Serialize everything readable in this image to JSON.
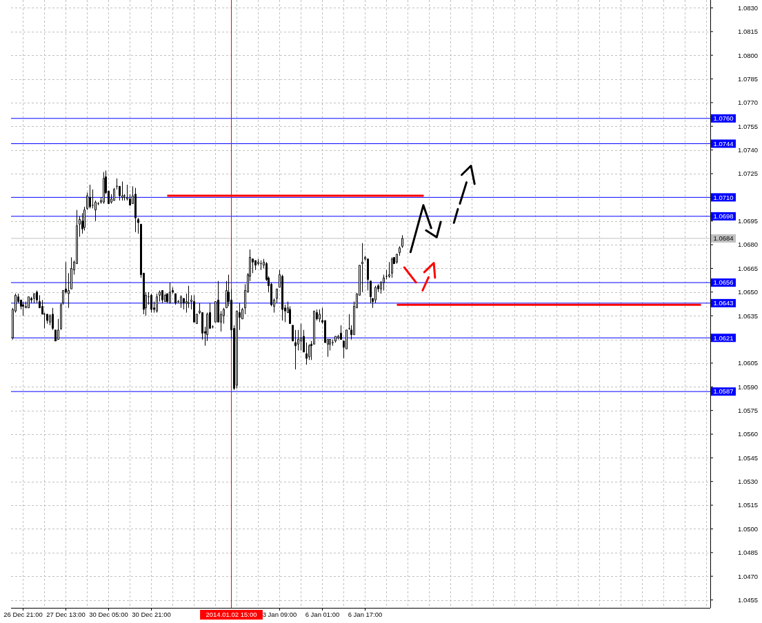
{
  "chart_data": {
    "type": "candlestick",
    "color": "#000000",
    "categories": [
      null,
      null,
      null,
      null,
      "26 Dec 21:00",
      null,
      null,
      null,
      null,
      null,
      null,
      null,
      null,
      null,
      null,
      null,
      null,
      null,
      null,
      null,
      "27 Dec 13:00",
      null,
      null,
      null,
      null,
      null,
      null,
      null,
      null,
      null,
      null,
      null,
      null,
      null,
      null,
      null,
      "30 Dec 05:00",
      null,
      null,
      null,
      null,
      null,
      null,
      null,
      null,
      null,
      null,
      null,
      null,
      null,
      null,
      null,
      "30 Dec 21:00",
      null,
      null,
      null,
      null,
      null,
      null,
      null,
      null,
      null,
      null,
      null,
      null,
      null,
      null,
      null,
      null,
      null,
      null,
      null,
      null,
      null,
      null,
      null,
      null,
      null,
      null,
      null,
      null,
      null,
      "2014.01.02 15:00",
      null,
      null,
      null,
      null,
      null,
      null,
      null,
      null,
      null,
      null,
      null,
      null,
      null,
      null,
      null,
      null,
      null,
      "3 Jan 09:00",
      null,
      null,
      null,
      null,
      null,
      null,
      null,
      null,
      null,
      null,
      null,
      null,
      null,
      null,
      null,
      "6 Jan 01:00",
      null,
      null,
      null,
      null,
      null,
      null,
      null,
      null,
      null,
      null,
      null,
      null,
      null,
      null,
      null,
      "6 Jan 17:00",
      null,
      null,
      null,
      null,
      null,
      null,
      null,
      null,
      null,
      null,
      null,
      null,
      null,
      null,
      null,
      null,
      null,
      null,
      null,
      null,
      null,
      null,
      null,
      null,
      null,
      null,
      null,
      null,
      null,
      null,
      null,
      null,
      null,
      null,
      null,
      null,
      null,
      null,
      null,
      null,
      null,
      null,
      null,
      null,
      null,
      null,
      null,
      null,
      null,
      null,
      null,
      null,
      null,
      null,
      null,
      null,
      null,
      null,
      null,
      null,
      null,
      null,
      null,
      null,
      null,
      null,
      null,
      null,
      null,
      null,
      null,
      null,
      null,
      null,
      null,
      null,
      null,
      null,
      null,
      null,
      null,
      null,
      null,
      null,
      null,
      null,
      null,
      null,
      null,
      null,
      null,
      null,
      null,
      null,
      null,
      null,
      null,
      null,
      null,
      null,
      null,
      null,
      null,
      null,
      null,
      null,
      null,
      null,
      null,
      null,
      null,
      null,
      null,
      null,
      null,
      null,
      null,
      null,
      null,
      null,
      null,
      null,
      null,
      null,
      null,
      null,
      null,
      null,
      null
    ],
    "ohlc": [
      [
        1.0621,
        1.064,
        1.062,
        1.0639
      ],
      [
        1.0638,
        1.0649,
        1.0637,
        1.0648
      ],
      [
        1.0647,
        1.0649,
        1.0643,
        1.0644
      ],
      [
        1.0645,
        1.0645,
        1.0639,
        1.0641
      ],
      [
        1.0642,
        1.0644,
        1.0635,
        1.0641
      ],
      [
        1.064,
        1.0644,
        1.064,
        1.0641
      ],
      [
        1.064,
        1.0647,
        1.064,
        1.0647
      ],
      [
        1.0646,
        1.0647,
        1.0643,
        1.0645
      ],
      [
        1.0646,
        1.0649,
        1.0643,
        1.0649
      ],
      [
        1.065,
        1.0651,
        1.0643,
        1.0645
      ],
      [
        1.0644,
        1.0648,
        1.064,
        1.064
      ],
      [
        1.0641,
        1.0645,
        1.0636,
        1.0636
      ],
      [
        1.0636,
        1.0637,
        1.0627,
        1.0636
      ],
      [
        1.0636,
        1.0636,
        1.063,
        1.0632
      ],
      [
        1.0631,
        1.0636,
        1.0629,
        1.0635
      ],
      [
        1.0636,
        1.064,
        1.0626,
        1.0627
      ],
      [
        1.0626,
        1.0626,
        1.0619,
        1.0619
      ],
      [
        1.062,
        1.0633,
        1.062,
        1.0626
      ],
      [
        1.0627,
        1.0643,
        1.0626,
        1.0642
      ],
      [
        1.0643,
        1.0651,
        1.0642,
        1.0651
      ],
      [
        1.0652,
        1.0669,
        1.0649,
        1.065
      ],
      [
        1.0649,
        1.0662,
        1.064,
        1.0651
      ],
      [
        1.0652,
        1.0672,
        1.0652,
        1.0665
      ],
      [
        1.0664,
        1.067,
        1.0661,
        1.0669
      ],
      [
        1.0668,
        1.0702,
        1.0668,
        1.0692
      ],
      [
        1.0693,
        1.0698,
        1.0685,
        1.0696
      ],
      [
        1.0695,
        1.07,
        1.0687,
        1.069
      ],
      [
        1.0691,
        1.0704,
        1.0689,
        1.0702
      ],
      [
        1.0703,
        1.0713,
        1.0702,
        1.0711
      ],
      [
        1.071,
        1.0718,
        1.0703,
        1.0704
      ],
      [
        1.0705,
        1.0715,
        1.0703,
        1.0705
      ],
      [
        1.0702,
        1.0708,
        1.0695,
        1.0707
      ],
      [
        1.0706,
        1.0707,
        1.0705,
        1.0706
      ],
      [
        1.0707,
        1.071,
        1.0706,
        1.0708
      ],
      [
        1.0707,
        1.0726,
        1.0706,
        1.0722
      ],
      [
        1.0723,
        1.0727,
        1.0712,
        1.0713
      ],
      [
        1.0714,
        1.0714,
        1.0706,
        1.0706
      ],
      [
        1.0707,
        1.0712,
        1.0706,
        1.0709
      ],
      [
        1.0708,
        1.0716,
        1.0708,
        1.0715
      ],
      [
        1.0717,
        1.0722,
        1.0715,
        1.0717
      ],
      [
        1.0717,
        1.0717,
        1.0708,
        1.0711
      ],
      [
        1.071,
        1.072,
        1.0708,
        1.0711
      ],
      [
        1.0711,
        1.0712,
        1.0708,
        1.0711
      ],
      [
        1.0709,
        1.0718,
        1.0708,
        1.071
      ],
      [
        1.0709,
        1.0712,
        1.0705,
        1.0705
      ],
      [
        1.0706,
        1.0717,
        1.0706,
        1.0711
      ],
      [
        1.0712,
        1.0716,
        1.0688,
        1.0697
      ],
      [
        1.0696,
        1.0697,
        1.0687,
        1.0694
      ],
      [
        1.0693,
        1.0693,
        1.0659,
        1.0661
      ],
      [
        1.0662,
        1.0662,
        1.0636,
        1.0639
      ],
      [
        1.064,
        1.065,
        1.0635,
        1.0648
      ],
      [
        1.0647,
        1.065,
        1.0642,
        1.0647
      ],
      [
        1.0648,
        1.0649,
        1.0637,
        1.0639
      ],
      [
        1.064,
        1.0644,
        1.0637,
        1.0639
      ],
      [
        1.0638,
        1.0649,
        1.0637,
        1.0647
      ],
      [
        1.0648,
        1.0651,
        1.0644,
        1.065
      ],
      [
        1.0651,
        1.0651,
        1.0643,
        1.0645
      ],
      [
        1.0644,
        1.0649,
        1.0644,
        1.0648
      ],
      [
        1.0649,
        1.0649,
        1.0643,
        1.0644
      ],
      [
        1.0643,
        1.0656,
        1.0643,
        1.065
      ],
      [
        1.0651,
        1.0653,
        1.0649,
        1.065
      ],
      [
        1.0649,
        1.0649,
        1.0642,
        1.0643
      ],
      [
        1.0644,
        1.0645,
        1.0643,
        1.0644
      ],
      [
        1.0643,
        1.0648,
        1.064,
        1.0647
      ],
      [
        1.0646,
        1.0646,
        1.0639,
        1.0643
      ],
      [
        1.0643,
        1.0649,
        1.0637,
        1.0644
      ],
      [
        1.0643,
        1.0654,
        1.064,
        1.0643
      ],
      [
        1.0644,
        1.0648,
        1.0639,
        1.0645
      ],
      [
        1.0644,
        1.0648,
        1.0631,
        1.0631
      ],
      [
        1.063,
        1.0636,
        1.063,
        1.0636
      ],
      [
        1.0637,
        1.0643,
        1.0636,
        1.0638
      ],
      [
        1.0637,
        1.0637,
        1.062,
        1.0624
      ],
      [
        1.0625,
        1.0628,
        1.0616,
        1.0624
      ],
      [
        1.0623,
        1.0637,
        1.0619,
        1.0636
      ],
      [
        1.0637,
        1.0643,
        1.0627,
        1.0627
      ],
      [
        1.0628,
        1.0629,
        1.0627,
        1.0628
      ],
      [
        1.0631,
        1.0644,
        1.0631,
        1.0644
      ],
      [
        1.0645,
        1.0657,
        1.0631,
        1.0631
      ],
      [
        1.0631,
        1.0638,
        1.0625,
        1.0636
      ],
      [
        1.0635,
        1.064,
        1.063,
        1.0639
      ],
      [
        1.064,
        1.0657,
        1.064,
        1.0651
      ],
      [
        1.065,
        1.0661,
        1.0641,
        1.0644
      ],
      [
        1.0645,
        1.0652,
        1.0621,
        1.0626
      ],
      [
        1.0627,
        1.0629,
        1.0588,
        1.0589
      ],
      [
        1.0591,
        1.0638,
        1.0589,
        1.0638
      ],
      [
        1.0637,
        1.0643,
        1.0626,
        1.0634
      ],
      [
        1.0633,
        1.064,
        1.0633,
        1.0639
      ],
      [
        1.064,
        1.0655,
        1.0636,
        1.0651
      ],
      [
        1.065,
        1.0662,
        1.065,
        1.0661
      ],
      [
        1.066,
        1.0677,
        1.0657,
        1.0672
      ],
      [
        1.0671,
        1.0671,
        1.0662,
        1.0669
      ],
      [
        1.067,
        1.067,
        1.0664,
        1.0667
      ],
      [
        1.0668,
        1.0671,
        1.0667,
        1.0669
      ],
      [
        1.0668,
        1.067,
        1.0664,
        1.0668
      ],
      [
        1.0667,
        1.0671,
        1.0665,
        1.0669
      ],
      [
        1.0668,
        1.0669,
        1.0657,
        1.0658
      ],
      [
        1.0659,
        1.066,
        1.065,
        1.0654
      ],
      [
        1.0655,
        1.0656,
        1.0641,
        1.0642
      ],
      [
        1.0641,
        1.0646,
        1.0637,
        1.0645
      ],
      [
        1.0646,
        1.0652,
        1.0643,
        1.0652
      ],
      [
        1.0653,
        1.0664,
        1.0653,
        1.0661
      ],
      [
        1.066,
        1.0661,
        1.0632,
        1.0639
      ],
      [
        1.064,
        1.0642,
        1.0631,
        1.0638
      ],
      [
        1.0637,
        1.0644,
        1.0637,
        1.064
      ],
      [
        1.0639,
        1.0641,
        1.063,
        1.063
      ],
      [
        1.0629,
        1.0629,
        1.0619,
        1.0619
      ],
      [
        1.0618,
        1.0626,
        1.0601,
        1.0616
      ],
      [
        1.0617,
        1.0626,
        1.0613,
        1.062
      ],
      [
        1.0619,
        1.063,
        1.0613,
        1.0621
      ],
      [
        1.0622,
        1.0626,
        1.0612,
        1.0612
      ],
      [
        1.0611,
        1.0618,
        1.0604,
        1.0608
      ],
      [
        1.0609,
        1.0617,
        1.0607,
        1.0616
      ],
      [
        1.0617,
        1.0619,
        1.0607,
        1.0616
      ],
      [
        1.0617,
        1.0638,
        1.0617,
        1.0638
      ],
      [
        1.0637,
        1.0639,
        1.0632,
        1.0633
      ],
      [
        1.0633,
        1.0639,
        1.0631,
        1.0636
      ],
      [
        1.0632,
        1.064,
        1.063,
        1.0631
      ],
      [
        1.0632,
        1.0632,
        1.0618,
        1.0618
      ],
      [
        1.0617,
        1.062,
        1.0609,
        1.062
      ],
      [
        1.0617,
        1.062,
        1.0613,
        1.062
      ],
      [
        1.0618,
        1.062,
        1.0616,
        1.0618
      ],
      [
        1.0619,
        1.0622,
        1.0618,
        1.0622
      ],
      [
        1.0621,
        1.0623,
        1.062,
        1.0622
      ],
      [
        1.0624,
        1.0629,
        1.062,
        1.062
      ],
      [
        1.0619,
        1.0619,
        1.0608,
        1.0615
      ],
      [
        1.0614,
        1.0626,
        1.0614,
        1.0626
      ],
      [
        1.0627,
        1.0636,
        1.0626,
        1.0627
      ],
      [
        1.0626,
        1.0629,
        1.062,
        1.0623
      ],
      [
        1.0623,
        1.0644,
        1.0623,
        1.0641
      ],
      [
        1.064,
        1.0649,
        1.064,
        1.0649
      ],
      [
        1.0648,
        1.0667,
        1.0648,
        1.0667
      ],
      [
        1.0668,
        1.0681,
        1.065,
        1.0669
      ],
      [
        1.0671,
        1.0673,
        1.067,
        1.0672
      ],
      [
        1.0671,
        1.0671,
        1.0651,
        1.0658
      ],
      [
        1.0657,
        1.0657,
        1.0643,
        1.0647
      ],
      [
        1.0646,
        1.0646,
        1.064,
        1.0644
      ],
      [
        1.0645,
        1.0654,
        1.0643,
        1.0653
      ],
      [
        1.0654,
        1.0655,
        1.065,
        1.0652
      ],
      [
        1.0652,
        1.0657,
        1.0649,
        1.0656
      ],
      [
        1.0656,
        1.0661,
        1.0651,
        1.0659
      ],
      [
        1.066,
        1.0664,
        1.0658,
        1.066
      ],
      [
        1.066,
        1.0669,
        1.0659,
        1.0661
      ],
      [
        1.0662,
        1.0672,
        1.0659,
        1.0671
      ],
      [
        1.0672,
        1.0672,
        1.0668,
        1.0668
      ],
      [
        1.0669,
        1.0674,
        1.0668,
        1.0674
      ],
      [
        1.0675,
        1.0679,
        1.0673,
        1.0678
      ],
      [
        1.0679,
        1.0686,
        1.0678,
        1.0684
      ],
      null,
      null,
      null,
      null,
      null,
      null,
      null,
      null,
      null,
      null,
      null,
      null,
      null,
      null,
      null,
      null,
      null,
      null,
      null,
      null,
      null,
      null,
      null,
      null,
      null,
      null,
      null,
      null,
      null,
      null,
      null,
      null,
      null,
      null,
      null,
      null,
      null,
      null,
      null,
      null,
      null,
      null,
      null,
      null,
      null,
      null,
      null,
      null,
      null,
      null,
      null,
      null,
      null,
      null,
      null,
      null,
      null,
      null,
      null,
      null,
      null,
      null,
      null,
      null,
      null,
      null,
      null,
      null,
      null,
      null,
      null,
      null,
      null,
      null,
      null,
      null,
      null,
      null,
      null,
      null,
      null,
      null,
      null,
      null,
      null,
      null,
      null,
      null,
      null,
      null,
      null,
      null,
      null,
      null,
      null,
      null,
      null,
      null,
      null,
      null,
      null,
      null,
      null,
      null,
      null,
      null,
      null,
      null,
      null,
      null,
      null,
      null,
      null,
      null,
      null
    ],
    "series": [
      {
        "type": "line",
        "color": "#ff0000",
        "values": [
          null,
          null,
          null,
          null,
          null,
          null,
          null,
          null,
          null,
          null,
          null,
          null,
          null,
          null,
          null,
          null,
          null,
          null,
          null,
          null,
          null,
          null,
          null,
          null,
          null,
          null,
          null,
          null,
          null,
          null,
          null,
          null,
          null,
          null,
          null,
          null,
          null,
          null,
          null,
          null,
          null,
          null,
          null,
          null,
          null,
          null,
          null,
          null,
          null,
          null,
          null,
          null,
          null,
          null,
          null,
          null,
          null,
          null,
          1.0711,
          1.0711,
          1.0711,
          1.0711,
          1.0711,
          1.0711,
          1.0711,
          1.0711,
          1.0711,
          1.0711,
          1.0711,
          1.0711,
          1.0711,
          1.0711,
          1.0711,
          1.0711,
          1.0711,
          1.0711,
          1.0711,
          1.0711,
          1.0711,
          1.0711,
          1.0711,
          1.0711,
          1.0711,
          1.0711,
          1.0711,
          1.0711,
          1.0711,
          1.0711,
          1.0711,
          1.0711,
          1.0711,
          1.0711,
          1.0711,
          1.0711,
          1.0711,
          1.0711,
          1.0711,
          1.0711,
          1.0711,
          1.0711,
          1.0711,
          1.0711,
          1.0711,
          1.0711,
          1.0711,
          1.0711,
          1.0711,
          1.0711,
          1.0711,
          1.0711,
          1.0711,
          1.0711,
          1.0711,
          1.0711,
          1.0711,
          1.0711,
          1.0711,
          1.0711,
          1.0711,
          1.0711,
          1.0711,
          1.0711,
          1.0711,
          1.0711,
          1.0711,
          1.0711,
          1.0711,
          1.0711,
          1.0711,
          1.0711,
          1.0711,
          1.0711,
          1.0711,
          1.0711,
          1.0711,
          1.0711,
          1.0711,
          1.0711,
          1.0711,
          1.0711,
          1.0711,
          1.0711,
          1.0711,
          1.0711,
          1.0711,
          1.0711,
          1.0711,
          1.0711,
          1.0711,
          1.0711,
          1.0711,
          1.0711,
          1.0711,
          1.0711,
          1.0711,
          null,
          null,
          null,
          null,
          null,
          null,
          null,
          null,
          null,
          null,
          null,
          null,
          null,
          null,
          null,
          null,
          null,
          null,
          null,
          null,
          null,
          null,
          null,
          null,
          null,
          null,
          null,
          null,
          null,
          null,
          null,
          null,
          null,
          null,
          null,
          null,
          null,
          null,
          null,
          null,
          null,
          null,
          null,
          null,
          null,
          null,
          null,
          null,
          null,
          null,
          null,
          null,
          null,
          null,
          null,
          null,
          null,
          null,
          null,
          null,
          null,
          null,
          null,
          null,
          null,
          null,
          null,
          null,
          null,
          null,
          null,
          null,
          null,
          null,
          null,
          null,
          null,
          null,
          null,
          null,
          null,
          null,
          null,
          null,
          null,
          null,
          null,
          null,
          null,
          null,
          null,
          null,
          null,
          null,
          null,
          null,
          null,
          null,
          null,
          null,
          null,
          null,
          null,
          null,
          null,
          null,
          null
        ]
      },
      {
        "type": "line",
        "color": "#ff0000",
        "values": [
          null,
          null,
          null,
          null,
          null,
          null,
          null,
          null,
          null,
          null,
          null,
          null,
          null,
          null,
          null,
          null,
          null,
          null,
          null,
          null,
          null,
          null,
          null,
          null,
          null,
          null,
          null,
          null,
          null,
          null,
          null,
          null,
          null,
          null,
          null,
          null,
          null,
          null,
          null,
          null,
          null,
          null,
          null,
          null,
          null,
          null,
          null,
          null,
          null,
          null,
          null,
          null,
          null,
          null,
          null,
          null,
          null,
          null,
          null,
          null,
          null,
          null,
          null,
          null,
          null,
          null,
          null,
          null,
          null,
          null,
          null,
          null,
          null,
          null,
          null,
          null,
          null,
          null,
          null,
          null,
          null,
          null,
          null,
          null,
          null,
          null,
          null,
          null,
          null,
          null,
          null,
          null,
          null,
          null,
          null,
          null,
          null,
          null,
          null,
          null,
          null,
          null,
          null,
          null,
          null,
          null,
          null,
          null,
          null,
          null,
          null,
          null,
          null,
          null,
          null,
          null,
          null,
          null,
          null,
          null,
          null,
          null,
          null,
          null,
          null,
          null,
          null,
          null,
          null,
          null,
          null,
          null,
          null,
          null,
          null,
          null,
          null,
          null,
          null,
          null,
          null,
          null,
          null,
          null,
          1.0642,
          1.0642,
          1.0642,
          1.0642,
          1.0642,
          1.0642,
          1.0642,
          1.0642,
          1.0642,
          1.0642,
          1.0642,
          1.0642,
          1.0642,
          1.0642,
          1.0642,
          1.0642,
          1.0642,
          1.0642,
          1.0642,
          1.0642,
          1.0642,
          1.0642,
          1.0642,
          1.0642,
          1.0642,
          1.0642,
          1.0642,
          1.0642,
          1.0642,
          1.0642,
          1.0642,
          1.0642,
          1.0642,
          1.0642,
          1.0642,
          1.0642,
          1.0642,
          1.0642,
          1.0642,
          1.0642,
          1.0642,
          1.0642,
          1.0642,
          1.0642,
          1.0642,
          1.0642,
          1.0642,
          1.0642,
          1.0642,
          1.0642,
          1.0642,
          1.0642,
          1.0642,
          1.0642,
          1.0642,
          1.0642,
          1.0642,
          1.0642,
          1.0642,
          1.0642,
          1.0642,
          1.0642,
          1.0642,
          1.0642,
          1.0642,
          1.0642,
          1.0642,
          1.0642,
          1.0642,
          1.0642,
          1.0642,
          1.0642,
          1.0642,
          1.0642,
          1.0642,
          1.0642,
          1.0642,
          1.0642,
          1.0642,
          1.0642,
          1.0642,
          1.0642,
          1.0642,
          1.0642,
          1.0642,
          1.0642,
          1.0642,
          1.0642,
          1.0642,
          1.0642,
          1.0642,
          1.0642,
          1.0642,
          1.0642,
          1.0642,
          1.0642,
          1.0642,
          1.0642,
          1.0642,
          1.0642,
          1.0642,
          1.0642,
          1.0642,
          1.0642,
          1.0642,
          1.0642,
          1.0642,
          1.0642,
          1.0642,
          1.0642,
          1.0642,
          1.0642,
          1.0642,
          1.0642,
          1.0642,
          null,
          null,
          null
        ]
      }
    ],
    "ylim": [
      1.045,
      1.0835
    ],
    "yticks": [
      {
        "value": 1.0455,
        "label": "1.0455"
      },
      {
        "value": 1.047,
        "label": "1.0470"
      },
      {
        "value": 1.0485,
        "label": "1.0485"
      },
      {
        "value": 1.05,
        "label": "1.0500"
      },
      {
        "value": 1.0515,
        "label": "1.0515"
      },
      {
        "value": 1.053,
        "label": "1.0530"
      },
      {
        "value": 1.0545,
        "label": "1.0545"
      },
      {
        "value": 1.056,
        "label": "1.0560"
      },
      {
        "value": 1.0575,
        "label": "1.0575"
      },
      {
        "value": 1.059,
        "label": "1.0590"
      },
      {
        "value": 1.0605,
        "label": "1.0605"
      },
      {
        "value": 1.062,
        "label": null
      },
      {
        "value": 1.0635,
        "label": "1.0635"
      },
      {
        "value": 1.065,
        "label": "1.0650"
      },
      {
        "value": 1.0665,
        "label": "1.0665"
      },
      {
        "value": 1.068,
        "label": "1.0680"
      },
      {
        "value": 1.0695,
        "label": "1.0695"
      },
      {
        "value": 1.0725,
        "label": "1.0725"
      },
      {
        "value": 1.074,
        "label": "1.0740"
      },
      {
        "value": 1.0755,
        "label": "1.0755"
      },
      {
        "value": 1.077,
        "label": "1.0770"
      },
      {
        "value": 1.0785,
        "label": "1.0785"
      },
      {
        "value": 1.08,
        "label": "1.0800"
      },
      {
        "value": 1.0815,
        "label": "1.0815"
      },
      {
        "value": 1.083,
        "label": "1.0830"
      }
    ],
    "grid": true,
    "ref_lines": [
      {
        "axis": "y",
        "value": 1.076,
        "label": "1.0760",
        "color": "#0000ff"
      },
      {
        "axis": "y",
        "value": 1.0744,
        "label": "1.0744",
        "color": "#0000ff"
      },
      {
        "axis": "y",
        "value": 1.071,
        "label": "1.0710",
        "color": "#0000ff"
      },
      {
        "axis": "y",
        "value": 1.0698,
        "label": "1.0698",
        "color": "#0000ff"
      },
      {
        "axis": "y",
        "value": 1.0684,
        "label": "1.0684",
        "color": "#c0c0c0"
      },
      {
        "axis": "y",
        "value": 1.0656,
        "label": "1.0656",
        "color": "#0000ff"
      },
      {
        "axis": "y",
        "value": 1.0643,
        "label": "1.0643",
        "color": "#0000ff"
      },
      {
        "axis": "y",
        "value": 1.0621,
        "label": "1.0621",
        "color": "#0000ff"
      },
      {
        "axis": "y",
        "value": 1.0587,
        "label": "1.0587",
        "color": "#0000ff"
      },
      {
        "axis": "x",
        "value": "2014.01.02 15:00",
        "color": "#ff0000"
      }
    ]
  }
}
